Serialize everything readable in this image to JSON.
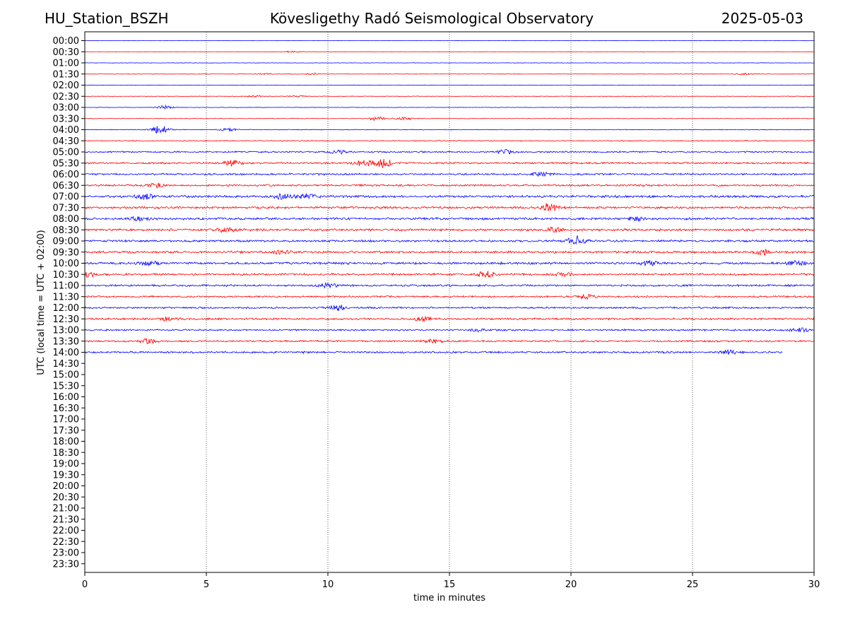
{
  "header": {
    "station": "HU_Station_BSZH",
    "observatory": "Kövesligethy Radó Seismological Observatory",
    "date": "2025-05-03"
  },
  "chart_data": {
    "type": "line",
    "title": "Kövesligethy Radó Seismological Observatory",
    "xlabel": "time in minutes",
    "ylabel": "UTC (local time = UTC + 02:00)",
    "xlim": [
      0,
      30
    ],
    "xticks": [
      0,
      5,
      10,
      15,
      20,
      25,
      30
    ],
    "grid": "vertical dotted at 5,10,15,20,25",
    "colors": {
      "even_rows": "#0000ff",
      "odd_rows": "#ff0000"
    },
    "rows": [
      "00:00",
      "00:30",
      "01:00",
      "01:30",
      "02:00",
      "02:30",
      "03:00",
      "03:30",
      "04:00",
      "04:30",
      "05:00",
      "05:30",
      "06:00",
      "06:30",
      "07:00",
      "07:30",
      "08:00",
      "08:30",
      "09:00",
      "09:30",
      "10:00",
      "10:30",
      "11:00",
      "11:30",
      "12:00",
      "12:30",
      "13:00",
      "13:30",
      "14:00",
      "14:30",
      "15:00",
      "15:30",
      "16:00",
      "16:30",
      "17:00",
      "17:30",
      "18:00",
      "18:30",
      "19:00",
      "19:30",
      "20:00",
      "20:30",
      "21:00",
      "21:30",
      "22:00",
      "22:30",
      "23:00",
      "23:30"
    ],
    "recorded_rows": 29,
    "last_row_end_minute": 28.7,
    "noise_level": [
      0.2,
      0.2,
      0.25,
      0.25,
      0.25,
      0.3,
      0.3,
      0.3,
      0.4,
      0.6,
      0.9,
      1.0,
      1.1,
      1.1,
      1.4,
      1.3,
      1.3,
      1.3,
      1.2,
      1.3,
      1.3,
      1.2,
      1.1,
      1.0,
      1.0,
      1.1,
      1.0,
      1.0,
      1.1
    ],
    "events": [
      {
        "row": "00:30",
        "minute": 8.6,
        "amp": 1.2
      },
      {
        "row": "01:30",
        "minute": 7.5,
        "amp": 1.0
      },
      {
        "row": "01:30",
        "minute": 9.4,
        "amp": 1.3
      },
      {
        "row": "01:30",
        "minute": 27.1,
        "amp": 1.0
      },
      {
        "row": "02:30",
        "minute": 7.0,
        "amp": 1.2
      },
      {
        "row": "02:30",
        "minute": 8.7,
        "amp": 1.1
      },
      {
        "row": "03:00",
        "minute": 3.3,
        "amp": 2.6
      },
      {
        "row": "03:30",
        "minute": 12.0,
        "amp": 2.8
      },
      {
        "row": "03:30",
        "minute": 13.2,
        "amp": 2.2
      },
      {
        "row": "04:00",
        "minute": 3.1,
        "amp": 5.5
      },
      {
        "row": "04:00",
        "minute": 5.9,
        "amp": 2.0
      },
      {
        "row": "05:00",
        "minute": 10.4,
        "amp": 2.4
      },
      {
        "row": "05:00",
        "minute": 17.3,
        "amp": 3.0
      },
      {
        "row": "05:30",
        "minute": 6.1,
        "amp": 4.5
      },
      {
        "row": "05:30",
        "minute": 11.5,
        "amp": 5.5
      },
      {
        "row": "05:30",
        "minute": 12.3,
        "amp": 6.0
      },
      {
        "row": "06:00",
        "minute": 18.8,
        "amp": 3.0
      },
      {
        "row": "06:30",
        "minute": 2.9,
        "amp": 3.0
      },
      {
        "row": "07:00",
        "minute": 2.5,
        "amp": 3.5
      },
      {
        "row": "07:00",
        "minute": 8.1,
        "amp": 3.0
      },
      {
        "row": "07:00",
        "minute": 9.1,
        "amp": 4.0
      },
      {
        "row": "07:30",
        "minute": 19.1,
        "amp": 5.5
      },
      {
        "row": "08:00",
        "minute": 2.2,
        "amp": 3.0
      },
      {
        "row": "08:00",
        "minute": 22.7,
        "amp": 2.5
      },
      {
        "row": "08:30",
        "minute": 5.8,
        "amp": 3.0
      },
      {
        "row": "08:30",
        "minute": 19.3,
        "amp": 3.0
      },
      {
        "row": "09:00",
        "minute": 20.2,
        "amp": 6.5
      },
      {
        "row": "09:30",
        "minute": 8.1,
        "amp": 3.0
      },
      {
        "row": "09:30",
        "minute": 27.9,
        "amp": 3.0
      },
      {
        "row": "10:00",
        "minute": 2.6,
        "amp": 3.5
      },
      {
        "row": "10:00",
        "minute": 23.2,
        "amp": 3.5
      },
      {
        "row": "10:00",
        "minute": 29.3,
        "amp": 3.5
      },
      {
        "row": "10:30",
        "minute": 0.2,
        "amp": 3.0
      },
      {
        "row": "10:30",
        "minute": 16.5,
        "amp": 3.5
      },
      {
        "row": "10:30",
        "minute": 19.7,
        "amp": 2.5
      },
      {
        "row": "11:00",
        "minute": 10.0,
        "amp": 3.0
      },
      {
        "row": "11:30",
        "minute": 20.6,
        "amp": 3.0
      },
      {
        "row": "12:00",
        "minute": 10.4,
        "amp": 4.0
      },
      {
        "row": "12:30",
        "minute": 3.4,
        "amp": 2.5
      },
      {
        "row": "12:30",
        "minute": 13.9,
        "amp": 3.0
      },
      {
        "row": "13:00",
        "minute": 16.2,
        "amp": 2.0
      },
      {
        "row": "13:00",
        "minute": 29.4,
        "amp": 2.5
      },
      {
        "row": "13:30",
        "minute": 2.6,
        "amp": 3.0
      },
      {
        "row": "13:30",
        "minute": 14.3,
        "amp": 2.5
      },
      {
        "row": "14:00",
        "minute": 26.5,
        "amp": 2.5
      }
    ]
  }
}
